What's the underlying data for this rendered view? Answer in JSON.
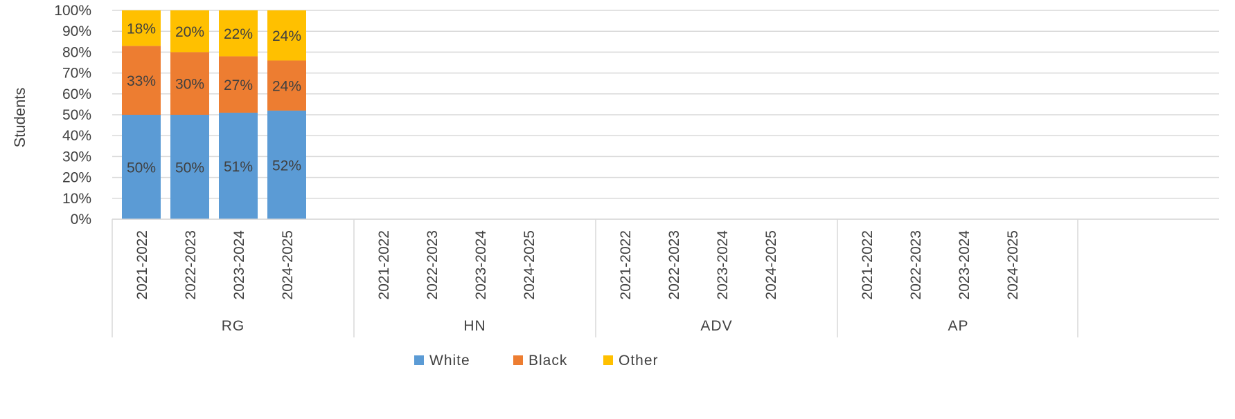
{
  "chart_data": {
    "type": "bar",
    "stacked": true,
    "percent": true,
    "ylabel": "Students",
    "ylim": [
      0,
      100
    ],
    "yticks": [
      "0%",
      "10%",
      "20%",
      "30%",
      "40%",
      "50%",
      "60%",
      "70%",
      "80%",
      "90%",
      "100%"
    ],
    "groups": [
      {
        "name": "RG",
        "categories": [
          "2021-2022",
          "2022-2023",
          "2023-2024",
          "2024-2025"
        ]
      },
      {
        "name": "HN",
        "categories": [
          "2021-2022",
          "2022-2023",
          "2023-2024",
          "2024-2025"
        ]
      },
      {
        "name": "ADV",
        "categories": [
          "2021-2022",
          "2022-2023",
          "2023-2024",
          "2024-2025"
        ]
      },
      {
        "name": "AP",
        "categories": [
          "2021-2022",
          "2022-2023",
          "2023-2024",
          "2024-2025"
        ]
      }
    ],
    "series": [
      {
        "name": "White",
        "color": "#5B9BD5",
        "values": [
          50,
          50,
          51,
          52,
          null,
          null,
          null,
          null,
          null,
          null,
          null,
          null,
          null,
          null,
          null,
          null
        ],
        "labels": [
          "50%",
          "50%",
          "51%",
          "52%"
        ]
      },
      {
        "name": "Black",
        "color": "#ED7D31",
        "values": [
          33,
          30,
          27,
          24,
          null,
          null,
          null,
          null,
          null,
          null,
          null,
          null,
          null,
          null,
          null,
          null
        ],
        "labels": [
          "33%",
          "30%",
          "27%",
          "24%"
        ]
      },
      {
        "name": "Other",
        "color": "#FFC000",
        "values": [
          18,
          20,
          22,
          24,
          null,
          null,
          null,
          null,
          null,
          null,
          null,
          null,
          null,
          null,
          null,
          null
        ],
        "labels": [
          "18%",
          "20%",
          "22%",
          "24%"
        ]
      }
    ],
    "legend": {
      "position": "bottom",
      "items": [
        "White",
        "Black",
        "Other"
      ]
    },
    "grid": true
  }
}
